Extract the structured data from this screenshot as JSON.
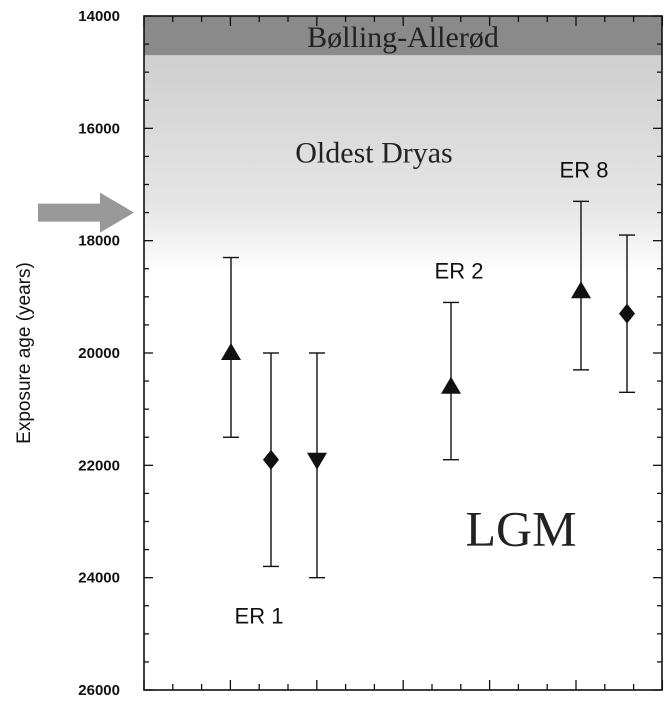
{
  "chart_data": {
    "type": "scatter",
    "ylabel": "Exposure age (years)",
    "xlabel": "",
    "ylim": [
      26000,
      14000
    ],
    "y_inverted": true,
    "yticks": [
      14000,
      16000,
      18000,
      20000,
      22000,
      24000,
      26000
    ],
    "ytick_labels": [
      "14000",
      "16000",
      "18000",
      "20000",
      "22000",
      "24000",
      "26000"
    ],
    "zones": [
      {
        "label": "Bølling-Allerød",
        "from": 14000,
        "to": 14700,
        "color": "#8a8a8a"
      },
      {
        "label": "Oldest Dryas",
        "from": 14700,
        "to": 18600,
        "color": "#d6d6d6"
      }
    ],
    "region_label": "LGM",
    "arrow_at": 17500,
    "groups": [
      {
        "label": "ER 1",
        "points": [
          {
            "marker": "triangle-up",
            "value": 20000,
            "err_low": 18300,
            "err_high": 21500
          },
          {
            "marker": "diamond",
            "value": 21900,
            "err_low": 20000,
            "err_high": 23800
          },
          {
            "marker": "triangle-down",
            "value": 21900,
            "err_low": 20000,
            "err_high": 24000
          }
        ]
      },
      {
        "label": "ER 2",
        "points": [
          {
            "marker": "triangle-up",
            "value": 20600,
            "err_low": 19100,
            "err_high": 21900
          }
        ]
      },
      {
        "label": "ER 8",
        "points": [
          {
            "marker": "triangle-up",
            "value": 18900,
            "err_low": 17300,
            "err_high": 20300
          },
          {
            "marker": "diamond",
            "value": 19300,
            "err_low": 17900,
            "err_high": 20700
          }
        ]
      }
    ],
    "colors": {
      "marker": "#111111",
      "frame": "#111111",
      "arrow": "#999999"
    }
  }
}
